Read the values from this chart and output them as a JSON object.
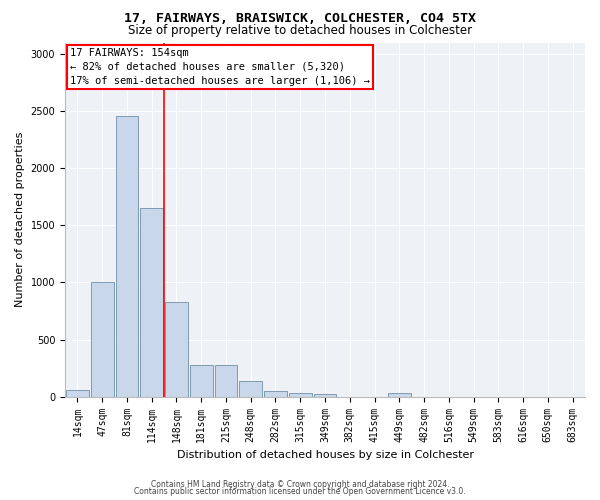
{
  "title": "17, FAIRWAYS, BRAISWICK, COLCHESTER, CO4 5TX",
  "subtitle": "Size of property relative to detached houses in Colchester",
  "xlabel": "Distribution of detached houses by size in Colchester",
  "ylabel": "Number of detached properties",
  "footnote1": "Contains HM Land Registry data © Crown copyright and database right 2024.",
  "footnote2": "Contains public sector information licensed under the Open Government Licence v3.0.",
  "bar_labels": [
    "14sqm",
    "47sqm",
    "81sqm",
    "114sqm",
    "148sqm",
    "181sqm",
    "215sqm",
    "248sqm",
    "282sqm",
    "315sqm",
    "349sqm",
    "382sqm",
    "415sqm",
    "449sqm",
    "482sqm",
    "516sqm",
    "549sqm",
    "583sqm",
    "616sqm",
    "650sqm",
    "683sqm"
  ],
  "bar_values": [
    55,
    1000,
    2460,
    1650,
    830,
    280,
    280,
    140,
    50,
    35,
    20,
    0,
    0,
    30,
    0,
    0,
    0,
    0,
    0,
    0,
    0
  ],
  "bar_color": "#c8d8ea",
  "bar_edge_color": "#7090a8",
  "red_line_x": 3.5,
  "annotation_title": "17 FAIRWAYS: 154sqm",
  "annotation_line1": "← 82% of detached houses are smaller (5,320)",
  "annotation_line2": "17% of semi-detached houses are larger (1,106) →",
  "ylim": [
    0,
    3100
  ],
  "yticks": [
    0,
    500,
    1000,
    1500,
    2000,
    2500,
    3000
  ],
  "background_color": "#eef2f7",
  "title_fontsize": 9.5,
  "subtitle_fontsize": 8.5,
  "xlabel_fontsize": 8,
  "ylabel_fontsize": 8,
  "tick_fontsize": 7,
  "annotation_fontsize": 7.5,
  "footnote_fontsize": 5.5
}
